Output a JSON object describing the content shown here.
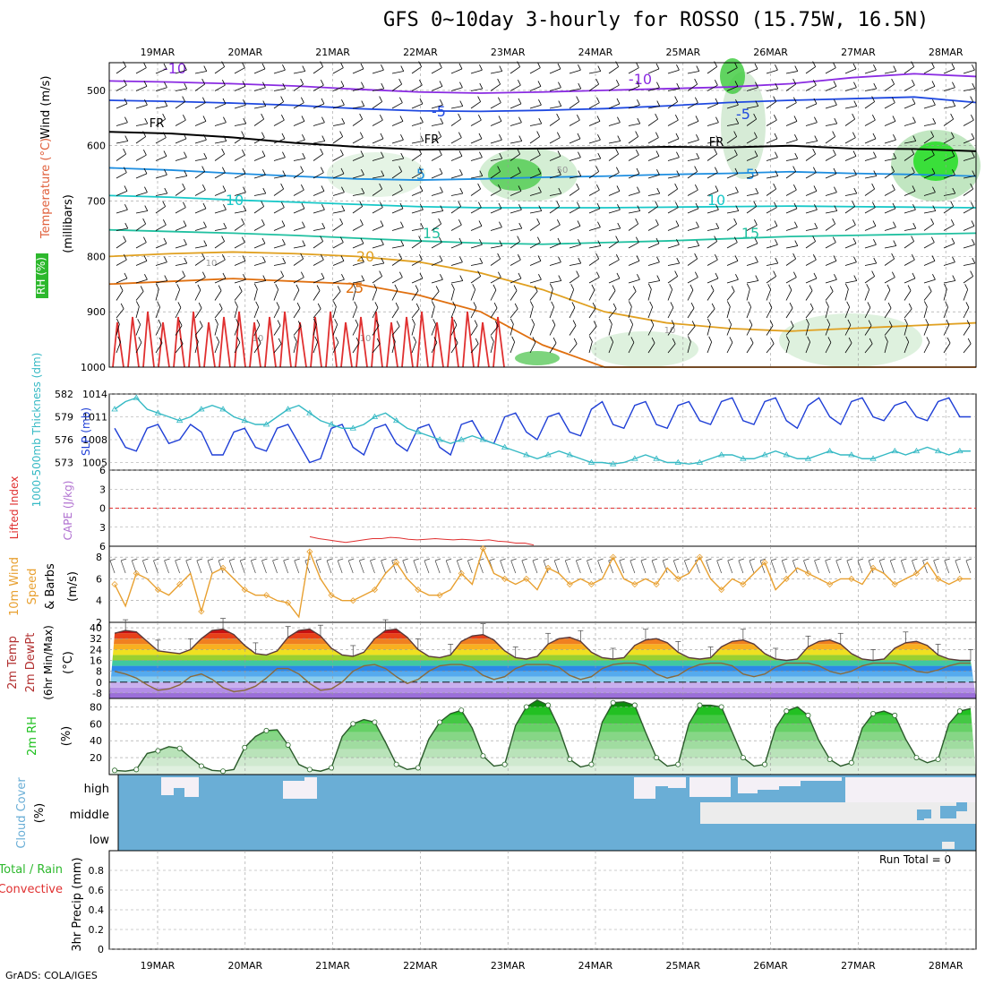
{
  "title": "GFS 0~10day 3-hourly for ROSSO (15.75W, 16.5N)",
  "credit": "GrADS: COLA/IGES",
  "run_total": "Run Total = 0",
  "colors": {
    "wind_label": "#000000",
    "temperature_label": "#e0603c",
    "rh_label": "#2db82d",
    "slp_line": "#1f3fd6",
    "thickness_line": "#35b9c4",
    "lifted_index": "#e03030",
    "cape": "#b070d0",
    "wind10": "#e8a030",
    "rh2m": "#1ec01e",
    "cloud": "#6aaed6",
    "precip_label_total": "#2db82d",
    "precip_label_conv": "#e03030"
  },
  "chart_data": [
    {
      "type": "line",
      "panel": "upper-air",
      "ylabel_parts": [
        "Wind (m/s)",
        "Temperature (°C)",
        "RH (%)",
        "(millibars)"
      ],
      "y_ticks": [
        500,
        600,
        700,
        800,
        900,
        1000
      ],
      "ylim": [
        450,
        1000
      ],
      "x_tick_labels": [
        "19MAR",
        "20MAR",
        "21MAR",
        "22MAR",
        "23MAR",
        "24MAR",
        "25MAR",
        "26MAR",
        "27MAR",
        "28MAR"
      ],
      "contour_labels": [
        "-10",
        "-10",
        "-5",
        "-5",
        "FR",
        "FR",
        "FR",
        "5",
        "5",
        "10",
        "10",
        "15",
        "15",
        "20",
        "25",
        "10",
        "10",
        "10",
        "10",
        "50"
      ],
      "isotherms": [
        {
          "label": "-10",
          "color": "#8a2be2",
          "p": [
            483,
            485,
            488,
            492,
            498,
            503,
            505,
            503,
            500,
            497,
            494,
            488,
            477,
            470,
            475
          ]
        },
        {
          "label": "-5",
          "color": "#1f49e0",
          "p": [
            518,
            520,
            523,
            527,
            533,
            537,
            538,
            536,
            533,
            528,
            522,
            518,
            515,
            512,
            522
          ]
        },
        {
          "label": "FR",
          "color": "#000000",
          "p": [
            575,
            578,
            585,
            595,
            602,
            607,
            606,
            605,
            604,
            602,
            603,
            600,
            605,
            606,
            610
          ]
        },
        {
          "label": "5",
          "color": "#1e8ee0",
          "p": [
            640,
            644,
            650,
            655,
            660,
            662,
            660,
            657,
            655,
            652,
            650,
            647,
            650,
            652,
            655
          ]
        },
        {
          "label": "10",
          "color": "#18c8c8",
          "p": [
            690,
            693,
            698,
            702,
            706,
            710,
            712,
            712,
            712,
            711,
            710,
            709,
            710,
            711,
            712
          ]
        },
        {
          "label": "15",
          "color": "#20c0a0",
          "p": [
            752,
            755,
            758,
            762,
            767,
            772,
            776,
            778,
            775,
            772,
            768,
            764,
            762,
            760,
            758
          ]
        },
        {
          "label": "20",
          "color": "#e0a020",
          "p": [
            800,
            795,
            792,
            795,
            800,
            810,
            830,
            860,
            900,
            920,
            930,
            935,
            930,
            925,
            920
          ]
        },
        {
          "label": "25",
          "color": "#e07010",
          "p": [
            850,
            845,
            840,
            845,
            850,
            870,
            900,
            960,
            1000,
            1000,
            1000,
            1000,
            1000,
            1000,
            1000
          ]
        }
      ]
    },
    {
      "type": "line",
      "panel": "slp-thickness",
      "ylabel_left": "1000-500mb Thickness (dm)",
      "ylabel_right": "SLP (mb)",
      "y_ticks_left": [
        573,
        576,
        579,
        582
      ],
      "y_ticks_right": [
        1005,
        1008,
        1011,
        1014
      ],
      "ylim_left": [
        572,
        582
      ],
      "ylim_right": [
        1004,
        1014
      ],
      "series": [
        {
          "name": "SLP",
          "values": [
            1009.5,
            1007.0,
            1006.5,
            1009.5,
            1010.0,
            1007.5,
            1008.0,
            1010.0,
            1009.0,
            1006.0,
            1006.0,
            1009.0,
            1009.5,
            1007.0,
            1006.5,
            1009.5,
            1010.0,
            1007.5,
            1005.0,
            1005.5,
            1009.5,
            1010.0,
            1007.0,
            1006.0,
            1009.5,
            1010.0,
            1007.5,
            1006.5,
            1009.5,
            1010.0,
            1007.0,
            1006.0,
            1010.0,
            1010.5,
            1008.0,
            1007.5,
            1011.0,
            1011.5,
            1009.0,
            1008.0,
            1011.0,
            1011.5,
            1009.0,
            1008.5,
            1012.0,
            1013.0,
            1010.0,
            1009.5,
            1012.5,
            1013.0,
            1010.0,
            1009.5,
            1012.5,
            1013.0,
            1010.5,
            1010.0,
            1013.0,
            1013.5,
            1010.5,
            1010.0,
            1013.0,
            1013.5,
            1010.5,
            1009.5,
            1012.5,
            1013.5,
            1011.0,
            1010.0,
            1013.0,
            1013.5,
            1011.0,
            1010.5,
            1012.5,
            1013.0,
            1011.0,
            1010.5,
            1013.0,
            1013.5,
            1011.0,
            1011.0
          ]
        },
        {
          "name": "Thickness",
          "values": [
            580.0,
            581.0,
            581.5,
            580.0,
            579.5,
            579.0,
            578.5,
            579.0,
            580.0,
            580.5,
            580.0,
            579.0,
            578.5,
            578.0,
            578.0,
            579.0,
            580.0,
            580.5,
            579.5,
            578.5,
            578.0,
            577.5,
            577.5,
            578.0,
            579.0,
            579.5,
            578.5,
            577.5,
            577.0,
            576.5,
            576.0,
            575.5,
            576.0,
            576.5,
            576.0,
            575.5,
            575.0,
            574.5,
            574.0,
            573.5,
            574.0,
            574.5,
            574.0,
            573.5,
            573.0,
            573.0,
            572.8,
            573.0,
            573.5,
            574.0,
            573.5,
            573.0,
            573.0,
            572.8,
            573.0,
            573.5,
            574.0,
            574.0,
            573.5,
            573.5,
            574.0,
            574.5,
            574.0,
            573.5,
            573.5,
            574.0,
            574.5,
            574.0,
            574.0,
            573.5,
            573.5,
            574.0,
            574.5,
            574.0,
            574.5,
            575.0,
            574.5,
            574.0,
            574.5,
            574.5
          ]
        }
      ]
    },
    {
      "type": "line",
      "panel": "stability",
      "ylabel_left": "Lifted Index",
      "ylabel_right": "CAPE (J/kg)",
      "y_ticks": [
        -6,
        -3,
        0,
        3,
        6
      ],
      "ylim": [
        -6,
        6
      ],
      "series": [
        {
          "name": "Lifted Index",
          "values": [
            4.5,
            4.8,
            5.0,
            5.2,
            5.4,
            5.2,
            5.0,
            4.8,
            4.8,
            4.6,
            4.7,
            4.9,
            5.0,
            4.9,
            4.8,
            4.9,
            5.0,
            4.9,
            5.0,
            5.1,
            5.0,
            5.2,
            5.3,
            5.5,
            5.5,
            5.8
          ]
        }
      ]
    },
    {
      "type": "line",
      "panel": "wind10m",
      "ylabel": "10m Wind Speed & Barbs (m/s)",
      "y_ticks": [
        2,
        4,
        6,
        8
      ],
      "ylim": [
        2,
        9
      ],
      "series": [
        {
          "name": "10m Wind Speed",
          "values": [
            5.5,
            3.5,
            6.5,
            6.0,
            5.0,
            4.5,
            5.5,
            6.5,
            3.0,
            6.5,
            7.0,
            6.0,
            5.0,
            4.5,
            4.5,
            4.0,
            3.8,
            2.5,
            8.5,
            6.0,
            4.5,
            4.0,
            4.0,
            4.5,
            5.0,
            6.5,
            7.5,
            6.0,
            5.0,
            4.5,
            4.5,
            5.0,
            6.5,
            5.5,
            8.8,
            6.5,
            6.0,
            5.5,
            6.0,
            5.0,
            7.0,
            6.5,
            5.5,
            6.0,
            5.5,
            6.0,
            8.0,
            6.0,
            5.5,
            6.0,
            5.5,
            7.0,
            6.0,
            6.5,
            8.0,
            6.0,
            5.0,
            6.0,
            5.5,
            6.5,
            7.5,
            5.0,
            6.0,
            7.0,
            6.5,
            6.0,
            5.5,
            6.0,
            6.0,
            5.5,
            7.0,
            6.5,
            5.5,
            6.0,
            6.5,
            7.5,
            6.0,
            5.5,
            6.0,
            6.0
          ]
        }
      ]
    },
    {
      "type": "area",
      "panel": "temp2m",
      "ylabel": "2m Temp 2m DewPt (6hr Min/Max) (°C)",
      "y_ticks": [
        -8,
        0,
        8,
        16,
        24,
        32,
        40
      ],
      "ylim": [
        -12,
        44
      ],
      "series": [
        {
          "name": "2m Temp",
          "values": [
            36,
            38,
            37,
            30,
            23,
            22,
            21,
            24,
            32,
            38,
            39,
            35,
            27,
            21,
            20,
            23,
            33,
            38,
            39,
            34,
            25,
            20,
            19,
            22,
            32,
            38,
            39,
            33,
            24,
            19,
            18,
            20,
            30,
            34,
            35,
            31,
            23,
            18,
            17,
            19,
            28,
            32,
            33,
            30,
            22,
            18,
            17,
            18,
            27,
            31,
            32,
            29,
            22,
            18,
            17,
            18,
            26,
            30,
            31,
            28,
            21,
            17,
            16,
            17,
            26,
            30,
            31,
            28,
            21,
            17,
            16,
            17,
            25,
            29,
            30,
            27,
            20,
            17,
            16,
            16
          ]
        },
        {
          "name": "2m DewPt",
          "values": [
            8,
            6,
            3,
            -2,
            -6,
            -5,
            -2,
            4,
            6,
            2,
            -4,
            -7,
            -6,
            -3,
            3,
            10,
            10,
            6,
            -1,
            -6,
            -5,
            0,
            8,
            12,
            13,
            10,
            4,
            -1,
            2,
            8,
            12,
            13,
            13,
            11,
            5,
            2,
            4,
            10,
            13,
            13,
            13,
            11,
            5,
            2,
            4,
            10,
            13,
            14,
            14,
            12,
            6,
            3,
            5,
            10,
            13,
            14,
            14,
            12,
            6,
            4,
            6,
            11,
            14,
            14,
            14,
            12,
            8,
            6,
            8,
            12,
            14,
            14,
            14,
            12,
            8,
            7,
            9,
            12,
            14,
            14
          ]
        }
      ]
    },
    {
      "type": "area",
      "panel": "rh2m",
      "ylabel": "2m RH (%)",
      "y_ticks": [
        20,
        40,
        60,
        80
      ],
      "ylim": [
        0,
        90
      ],
      "series": [
        {
          "name": "2m RH",
          "values": [
            5,
            4,
            6,
            25,
            28,
            33,
            31,
            20,
            10,
            5,
            4,
            6,
            32,
            45,
            52,
            53,
            35,
            12,
            6,
            4,
            8,
            45,
            60,
            65,
            62,
            38,
            12,
            6,
            8,
            42,
            62,
            72,
            76,
            55,
            22,
            10,
            12,
            58,
            80,
            88,
            82,
            55,
            18,
            9,
            12,
            62,
            85,
            86,
            82,
            50,
            20,
            10,
            12,
            60,
            82,
            82,
            80,
            50,
            20,
            10,
            12,
            55,
            75,
            80,
            70,
            40,
            18,
            10,
            14,
            55,
            72,
            75,
            70,
            42,
            20,
            14,
            18,
            60,
            75,
            78
          ]
        }
      ]
    },
    {
      "type": "area",
      "panel": "cloud",
      "ylabel": "Cloud Cover (%)",
      "y_tick_labels": [
        "high",
        "middle",
        "low"
      ]
    },
    {
      "type": "bar",
      "panel": "precip",
      "ylabel_parts": [
        "Total / Rain",
        "Convective",
        "3hr Precip (mm)"
      ],
      "y_ticks": [
        0,
        0.2,
        0.4,
        0.6,
        0.8
      ],
      "ylim": [
        0,
        1.0
      ],
      "values": []
    }
  ]
}
